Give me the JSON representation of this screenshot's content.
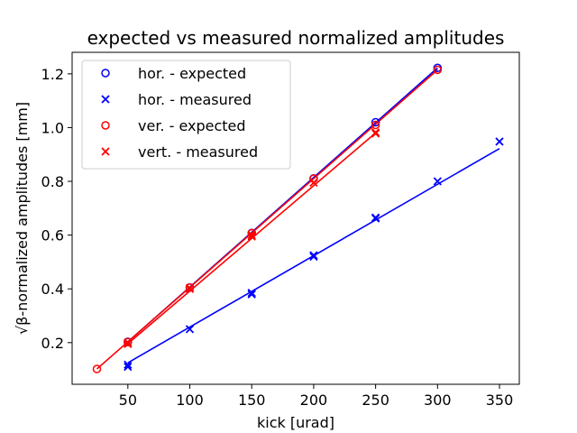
{
  "chart_data": {
    "type": "scatter",
    "title": "expected vs measured normalized amplitudes",
    "xlabel": "kick [urad]",
    "ylabel": "β-normalized amplitudes [mm]",
    "ylabel_prefix": "√",
    "xlim": [
      5,
      366
    ],
    "ylim": [
      0.045,
      1.28
    ],
    "xticks": [
      50,
      100,
      150,
      200,
      250,
      300,
      350
    ],
    "yticks": [
      0.2,
      0.4,
      0.6,
      0.8,
      1.0,
      1.2
    ],
    "xtick_labels": [
      "50",
      "100",
      "150",
      "200",
      "250",
      "300",
      "350"
    ],
    "ytick_labels": [
      "0.2",
      "0.4",
      "0.6",
      "0.8",
      "1.0",
      "1.2"
    ],
    "grid": false,
    "legend_position": "top-left",
    "series": [
      {
        "name": "hor. - expected",
        "marker": "circle",
        "color": "#0000ff",
        "x": [
          50,
          100,
          150,
          200,
          250,
          300
        ],
        "y": [
          0.203,
          0.405,
          0.608,
          0.811,
          1.02,
          1.222
        ],
        "fit": [
          [
            50,
            0.203
          ],
          [
            300,
            1.222
          ]
        ]
      },
      {
        "name": "hor. - measured",
        "marker": "x",
        "color": "#0000ff",
        "x": [
          50,
          50,
          100,
          150,
          150,
          200,
          200,
          250,
          250,
          300,
          350
        ],
        "y": [
          0.11,
          0.118,
          0.25,
          0.38,
          0.385,
          0.52,
          0.525,
          0.662,
          0.665,
          0.8,
          0.948
        ],
        "fit": [
          [
            50,
            0.125
          ],
          [
            350,
            0.922
          ]
        ]
      },
      {
        "name": "ver. - expected",
        "marker": "circle",
        "color": "#ff0000",
        "x": [
          25,
          50,
          100,
          150,
          200,
          250,
          300
        ],
        "y": [
          0.102,
          0.202,
          0.405,
          0.607,
          0.81,
          1.01,
          1.215
        ],
        "fit": [
          [
            25,
            0.102
          ],
          [
            300,
            1.215
          ]
        ]
      },
      {
        "name": "vert. - measured",
        "marker": "x",
        "color": "#ff0000",
        "x": [
          50,
          50,
          100,
          100,
          150,
          150,
          200,
          250,
          250
        ],
        "y": [
          0.195,
          0.2,
          0.4,
          0.403,
          0.595,
          0.6,
          0.795,
          0.978,
          0.982
        ],
        "fit": [
          [
            50,
            0.196
          ],
          [
            250,
            0.98
          ]
        ]
      }
    ]
  }
}
